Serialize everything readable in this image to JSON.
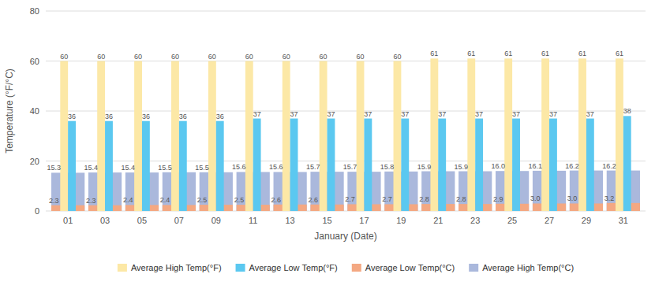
{
  "chart_data": {
    "type": "bar",
    "x_label": "January (Date)",
    "y_label": "Temperature (°F/°C)",
    "categories": [
      "01",
      "03",
      "05",
      "07",
      "09",
      "11",
      "13",
      "15",
      "17",
      "19",
      "21",
      "23",
      "25",
      "27",
      "29",
      "31"
    ],
    "series": [
      {
        "name": "Average High Temp(°F)",
        "color": "#fce8a6",
        "values": [
          60,
          60,
          60,
          60,
          60,
          60,
          60,
          60,
          60,
          60,
          61,
          61,
          61,
          61,
          61,
          61
        ]
      },
      {
        "name": "Average Low Temp(°F)",
        "color": "#5bc8f0",
        "values": [
          36,
          36,
          36,
          36,
          36,
          37,
          37,
          37,
          37,
          37,
          37,
          37,
          37,
          37,
          37,
          38
        ]
      },
      {
        "name": "Average Low Temp(°C)",
        "color": "#f4a882",
        "values": [
          2.3,
          2.3,
          2.4,
          2.4,
          2.5,
          2.5,
          2.6,
          2.6,
          2.7,
          2.7,
          2.8,
          2.8,
          2.9,
          3.0,
          3.0,
          3.2
        ],
        "value_labels": [
          "2.3",
          "2.3",
          "2.4",
          "2.4",
          "2.5",
          "2.5",
          "2.6",
          "2.6",
          "2.7",
          "2.7",
          "2.8",
          "2.8",
          "2.9",
          "3.0",
          "3.0",
          "3.2"
        ]
      },
      {
        "name": "Average High Temp(°C)",
        "color": "#aab8dc",
        "values": [
          15.3,
          15.4,
          15.4,
          15.5,
          15.5,
          15.6,
          15.6,
          15.7,
          15.7,
          15.8,
          15.9,
          15.9,
          16.0,
          16.1,
          16.2,
          16.2
        ],
        "value_labels": [
          "15.3",
          "15.4",
          "15.4",
          "15.5",
          "15.5",
          "15.6",
          "15.6",
          "15.7",
          "15.7",
          "15.8",
          "15.9",
          "15.9",
          "16.0",
          "16.1",
          "16.2",
          "16.2"
        ]
      }
    ],
    "ylim": [
      0,
      80
    ],
    "yticks": [
      0,
      20,
      40,
      60,
      80
    ],
    "grid": true,
    "data_labels": true,
    "legend": "bottom"
  }
}
